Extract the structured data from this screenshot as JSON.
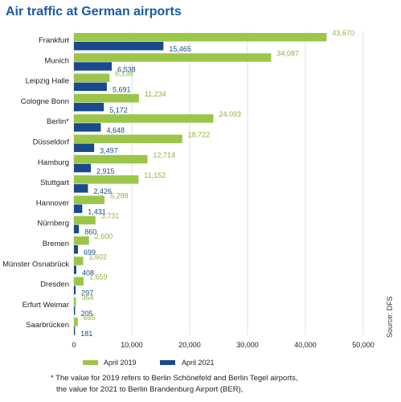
{
  "chart_data": {
    "type": "bar",
    "orientation": "horizontal",
    "title": "Air traffic at German airports",
    "categories": [
      "Frankfurt",
      "Munich",
      "Leipzig Halle",
      "Cologne Bonn",
      "Berlin*",
      "Düsseldorf",
      "Hamburg",
      "Stuttgart",
      "Hannover",
      "Nürnberg",
      "Bremen",
      "Münster Osnabrück",
      "Dresden",
      "Erfurt Weimar",
      "Saarbrücken"
    ],
    "series": [
      {
        "name": "April 2019",
        "color": "#9bc64a",
        "values": [
          43670,
          34087,
          6138,
          11234,
          24093,
          18722,
          12714,
          11152,
          5288,
          3731,
          2600,
          1602,
          1659,
          364,
          665
        ],
        "labels": [
          "43,670",
          "34,087",
          "6,138",
          "11,234",
          "24,093",
          "18,722",
          "12,714",
          "11,152",
          "5,288",
          "3,731",
          "2,600",
          "1,602",
          "1,659",
          "364",
          "665"
        ]
      },
      {
        "name": "April 2021",
        "color": "#1a4a8a",
        "values": [
          15465,
          6538,
          5691,
          5172,
          4648,
          3497,
          2915,
          2426,
          1431,
          860,
          699,
          408,
          297,
          205,
          181
        ],
        "labels": [
          "15,465",
          "6,538",
          "5,691",
          "5,172",
          "4,648",
          "3,497",
          "2,915",
          "2,426",
          "1,431",
          "860",
          "699",
          "408",
          "297",
          "205",
          "181"
        ]
      }
    ],
    "xlim": [
      0,
      50000
    ],
    "ticks": [
      0,
      10000,
      20000,
      30000,
      40000,
      50000
    ],
    "tick_labels": [
      "0",
      "10,000",
      "20,000",
      "30,000",
      "40,000",
      "50,000"
    ],
    "grid": true,
    "legend_position": "bottom-left",
    "source": "Source: DFS",
    "footnote": [
      "* The value for 2019 refers to Berlin Schönefeld and Berlin Tegel airports,",
      "the value for 2021 to Berlin Brandenburg Airport (BER),"
    ]
  }
}
